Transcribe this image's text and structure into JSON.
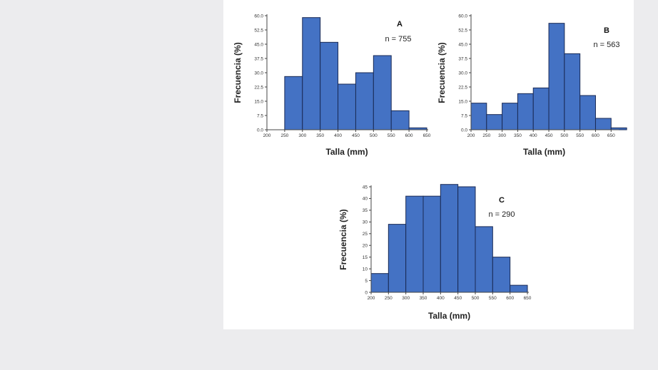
{
  "chart_data": [
    {
      "type": "bar",
      "panel_letter": "A",
      "annotation": "n = 755",
      "xlabel": "Talla (mm)",
      "ylabel": "Frecuencia (%)",
      "x_ticks": [
        "200",
        "250",
        "300",
        "350",
        "400",
        "450",
        "500",
        "550",
        "600",
        "650"
      ],
      "y_ticks": [
        "0.0",
        "7.5",
        "15.0",
        "22.5",
        "30.0",
        "37.5",
        "45.0",
        "52.5",
        "60.0"
      ],
      "xlim": [
        200,
        650
      ],
      "ylim": [
        0,
        60
      ],
      "bins": [
        {
          "start": 250,
          "end": 300,
          "value": 28
        },
        {
          "start": 300,
          "end": 350,
          "value": 59
        },
        {
          "start": 350,
          "end": 400,
          "value": 46
        },
        {
          "start": 400,
          "end": 450,
          "value": 24
        },
        {
          "start": 450,
          "end": 500,
          "value": 30
        },
        {
          "start": 500,
          "end": 550,
          "value": 39
        },
        {
          "start": 550,
          "end": 600,
          "value": 10
        },
        {
          "start": 600,
          "end": 650,
          "value": 1
        }
      ]
    },
    {
      "type": "bar",
      "panel_letter": "B",
      "annotation": "n = 563",
      "xlabel": "Talla (mm)",
      "ylabel": "Frecuencia (%)",
      "x_ticks": [
        "200",
        "250",
        "300",
        "350",
        "400",
        "450",
        "500",
        "550",
        "600",
        "650"
      ],
      "y_ticks": [
        "0.0",
        "7.5",
        "15.0",
        "22.5",
        "30.0",
        "37.5",
        "45.0",
        "52.5",
        "60.0"
      ],
      "xlim": [
        200,
        650
      ],
      "ylim": [
        0,
        60
      ],
      "bins": [
        {
          "start": 200,
          "end": 250,
          "value": 14
        },
        {
          "start": 250,
          "end": 300,
          "value": 8
        },
        {
          "start": 300,
          "end": 350,
          "value": 14
        },
        {
          "start": 350,
          "end": 400,
          "value": 19
        },
        {
          "start": 400,
          "end": 450,
          "value": 22
        },
        {
          "start": 450,
          "end": 500,
          "value": 56
        },
        {
          "start": 500,
          "end": 550,
          "value": 40
        },
        {
          "start": 550,
          "end": 600,
          "value": 18
        },
        {
          "start": 600,
          "end": 650,
          "value": 6
        },
        {
          "start": 650,
          "end": 700,
          "value": 1
        }
      ]
    },
    {
      "type": "bar",
      "panel_letter": "C",
      "annotation": "n = 290",
      "xlabel": "Talla (mm)",
      "ylabel": "Frecuencia (%)",
      "x_ticks": [
        "200",
        "250",
        "300",
        "350",
        "400",
        "450",
        "500",
        "550",
        "600",
        "650"
      ],
      "y_ticks": [
        "0",
        "5",
        "10",
        "15",
        "20",
        "25",
        "30",
        "35",
        "40",
        "45"
      ],
      "xlim": [
        200,
        650
      ],
      "ylim": [
        0,
        45
      ],
      "bins": [
        {
          "start": 200,
          "end": 250,
          "value": 8
        },
        {
          "start": 250,
          "end": 300,
          "value": 29
        },
        {
          "start": 300,
          "end": 350,
          "value": 41
        },
        {
          "start": 350,
          "end": 400,
          "value": 41
        },
        {
          "start": 400,
          "end": 450,
          "value": 46
        },
        {
          "start": 450,
          "end": 500,
          "value": 45
        },
        {
          "start": 500,
          "end": 550,
          "value": 28
        },
        {
          "start": 550,
          "end": 600,
          "value": 15
        },
        {
          "start": 600,
          "end": 650,
          "value": 3
        }
      ]
    }
  ]
}
